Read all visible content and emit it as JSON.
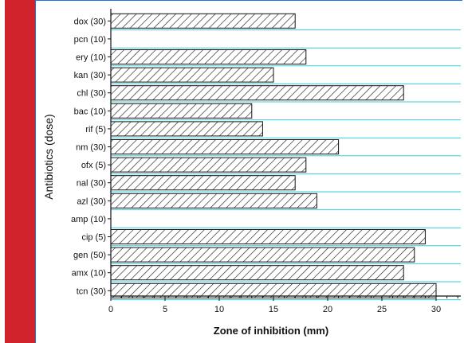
{
  "colors": {
    "left_bar": "#d0232b",
    "frame_border": "#1a73e8",
    "gridline": "#33ccdd",
    "bar_stroke": "#111111",
    "hatch": "#222222",
    "axis": "#111111"
  },
  "chart_data": {
    "type": "bar",
    "orientation": "horizontal",
    "categories": [
      "dox (30)",
      "pcn (10)",
      "ery (10)",
      "kan (30)",
      "chl (30)",
      "bac (10)",
      "rif (5)",
      "nm (30)",
      "ofx (5)",
      "nal (30)",
      "azl (30)",
      "amp (10)",
      "cip (5)",
      "gen (50)",
      "amx (10)",
      "tcn (30)"
    ],
    "values": [
      17,
      0,
      18,
      15,
      27,
      13,
      14,
      21,
      18,
      17,
      19,
      0,
      29,
      28,
      27,
      30
    ],
    "xlabel": "Zone of inhibition (mm)",
    "ylabel": "Antibiotics (dose)",
    "xlim": [
      0,
      32
    ],
    "xticks": [
      0,
      5,
      10,
      15,
      20,
      25,
      30
    ],
    "xtick_labels": [
      "0",
      "5",
      "10",
      "15",
      "20",
      "25",
      "30"
    ],
    "grid": "horizontal",
    "bar_fill": "diagonal hatch"
  }
}
